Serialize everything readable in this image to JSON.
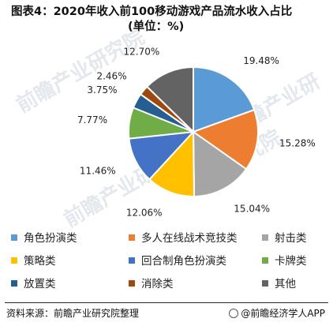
{
  "header": {
    "title": "图表4：2020年收入前100移动游戏产品流水收入占比",
    "subtitle": "(单位：%)"
  },
  "chart_data": {
    "type": "pie",
    "title": "图表4：2020年收入前100移动游戏产品流水收入占比",
    "unit": "%",
    "start_angle_deg": 0,
    "direction": "clockwise",
    "legend_position": "bottom",
    "slices": [
      {
        "name": "角色扮演类",
        "value": 19.48,
        "label": "19.48%",
        "color": "#5b9bd5"
      },
      {
        "name": "多人在线战术竞技类",
        "value": 15.28,
        "label": "15.28%",
        "color": "#ed7d31"
      },
      {
        "name": "射击类",
        "value": 15.04,
        "label": "15.04%",
        "color": "#a5a5a5"
      },
      {
        "name": "策略类",
        "value": 12.06,
        "label": "12.06%",
        "color": "#ffc000"
      },
      {
        "name": "回合制角色扮演类",
        "value": 11.46,
        "label": "11.46%",
        "color": "#4472c4"
      },
      {
        "name": "卡牌类",
        "value": 7.77,
        "label": "7.77%",
        "color": "#70ad47"
      },
      {
        "name": "放置类",
        "value": 3.75,
        "label": "3.75%",
        "color": "#255e91"
      },
      {
        "name": "消除类",
        "value": 2.46,
        "label": "2.46%",
        "color": "#9e480e"
      },
      {
        "name": "其他",
        "value": 12.7,
        "label": "12.70%",
        "color": "#636363"
      }
    ]
  },
  "footer": {
    "source": "资料来源：前瞻产业研究院整理",
    "brand": "@前瞻经济学人APP"
  },
  "watermark": {
    "text": "前瞻产业研究院"
  }
}
